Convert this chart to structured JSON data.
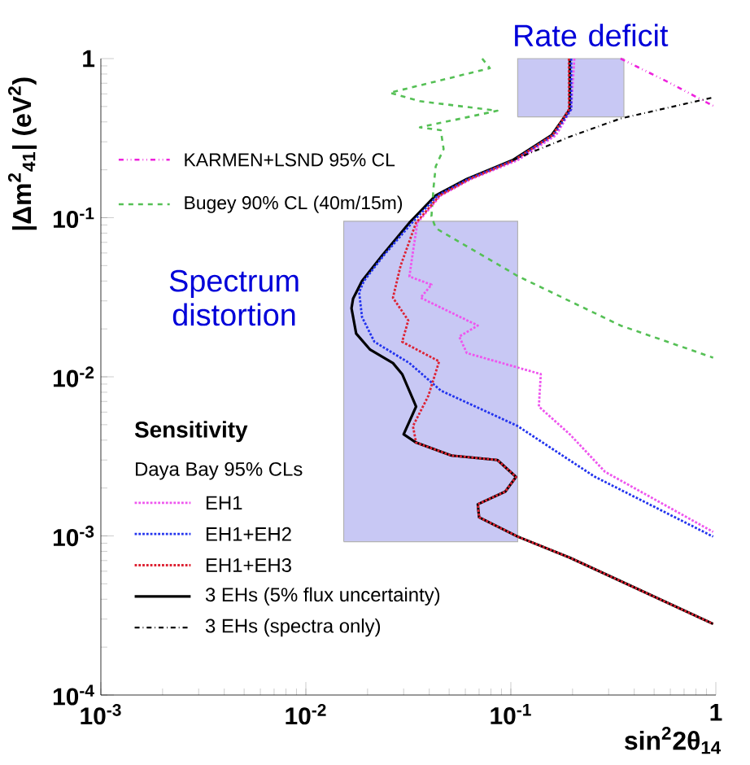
{
  "chart_data": {
    "type": "line",
    "xlabel": "sin$^{2}$2θ$_{14}$",
    "ylabel": "|Δm$^{2}$$_{41}$| (eV$^{2}$)",
    "log": "xy",
    "xlim": [
      0.001,
      1
    ],
    "ylim": [
      0.0001,
      1
    ],
    "xticks": [
      {
        "value": 0.001,
        "label": "10$^{-3}$"
      },
      {
        "value": 0.01,
        "label": "10$^{-2}$"
      },
      {
        "value": 0.1,
        "label": "10$^{-1}$"
      },
      1
    ],
    "yticks": [
      {
        "value": 0.0001,
        "label": "10$^{-4}$"
      },
      {
        "value": 0.001,
        "label": "10$^{-3}$"
      },
      {
        "value": 0.01,
        "label": "10$^{-2}$"
      },
      {
        "value": 0.1,
        "label": "10$^{-1}$"
      },
      1
    ],
    "legend": "left",
    "legend_title": "Sensitivity",
    "annotations": [
      "Daya Bay 95% CLs"
    ],
    "series": [
      {
        "name": "KARMEN+LSND 95% CL",
        "color": "#ee22dd",
        "line_style": "dashdotdotted",
        "x": [
          0.343,
          0.575,
          0.97
        ],
        "values": [
          1,
          0.72,
          0.505
        ]
      },
      {
        "name": "Bugey 90% CL (40m/15m)",
        "color": "#55c055",
        "line_style": "dashed",
        "x": [
          0.0725,
          0.079,
          0.0257,
          0.036,
          0.086,
          0.036,
          0.0455,
          0.047,
          0.043,
          0.042,
          0.041,
          0.043,
          0.108,
          0.343,
          0.97
        ],
        "values": [
          1,
          0.87,
          0.61,
          0.54,
          0.47,
          0.37,
          0.355,
          0.27,
          0.21,
          0.156,
          0.102,
          0.086,
          0.043,
          0.021,
          0.0132
        ]
      },
      {
        "name": "EH1",
        "color": "#ee55ee",
        "line_style": "dotted",
        "x": [
          0.204,
          0.197,
          0.166,
          0.108,
          0.064,
          0.0455,
          0.035,
          0.0333,
          0.032,
          0.041,
          0.0363,
          0.069,
          0.056,
          0.061,
          0.14,
          0.137,
          0.194,
          0.288,
          0.97
        ],
        "values": [
          1,
          0.48,
          0.33,
          0.23,
          0.175,
          0.138,
          0.093,
          0.061,
          0.0427,
          0.0379,
          0.0314,
          0.021,
          0.0179,
          0.0141,
          0.0104,
          0.0065,
          0.00435,
          0.00253,
          0.00106
        ]
      },
      {
        "name": "EH1+EH2",
        "color": "#2233ee",
        "line_style": "dotted",
        "x": [
          0.197,
          0.197,
          0.161,
          0.104,
          0.062,
          0.044,
          0.033,
          0.024,
          0.0192,
          0.0182,
          0.0188,
          0.0216,
          0.032,
          0.0455,
          0.108,
          0.256,
          0.97
        ],
        "values": [
          1,
          0.48,
          0.33,
          0.23,
          0.175,
          0.138,
          0.093,
          0.058,
          0.04,
          0.034,
          0.0237,
          0.0166,
          0.0122,
          0.0082,
          0.0049,
          0.00236,
          0.00099
        ]
      },
      {
        "name": "EH1+EH3",
        "color": "#dd2233",
        "line_style": "dotted",
        "x": [
          0.192,
          0.192,
          0.16,
          0.104,
          0.063,
          0.045,
          0.0345,
          0.029,
          0.0266,
          0.0316,
          0.0295,
          0.0447,
          0.0396,
          0.0333,
          0.0345,
          0.0513,
          0.086,
          0.106,
          0.094,
          0.069,
          0.07,
          0.108,
          0.194,
          0.343,
          0.97
        ],
        "values": [
          1,
          0.48,
          0.33,
          0.23,
          0.175,
          0.138,
          0.093,
          0.05,
          0.0314,
          0.0226,
          0.0166,
          0.0125,
          0.0076,
          0.0049,
          0.00386,
          0.0032,
          0.003,
          0.00235,
          0.0019,
          0.00158,
          0.00131,
          0.00099,
          0.00073,
          0.00052,
          0.00028
        ]
      },
      {
        "name": "3 EHs (5% flux uncertainty)",
        "color": "#000000",
        "line_style": "solid",
        "x": [
          0.194,
          0.194,
          0.158,
          0.102,
          0.061,
          0.043,
          0.032,
          0.0236,
          0.0188,
          0.017,
          0.0167,
          0.0176,
          0.0206,
          0.0266,
          0.0295,
          0.0345,
          0.03,
          0.0345,
          0.0513,
          0.086,
          0.106,
          0.094,
          0.069,
          0.07,
          0.108,
          0.194,
          0.343,
          0.97
        ],
        "values": [
          1,
          0.48,
          0.33,
          0.23,
          0.175,
          0.138,
          0.093,
          0.058,
          0.04,
          0.031,
          0.027,
          0.0187,
          0.0148,
          0.0122,
          0.0104,
          0.0065,
          0.00435,
          0.00386,
          0.0032,
          0.003,
          0.00235,
          0.0019,
          0.00158,
          0.00131,
          0.00099,
          0.00073,
          0.00052,
          0.00028
        ]
      },
      {
        "name": "3 EHs (spectra only)",
        "color": "#000000",
        "line_style": "dashdotted",
        "x": [
          0.102,
          0.194,
          0.343,
          0.97
        ],
        "values": [
          0.23,
          0.323,
          0.42,
          0.57
        ]
      },
      {
        "name": "Rate deficit",
        "type": "area",
        "color": "#c8c8f4",
        "x": [
          0.108,
          0.356,
          0.356,
          0.108,
          0.108
        ],
        "values": [
          0.43,
          0.43,
          1,
          1,
          0.43
        ]
      },
      {
        "name": "Spectrum distortion",
        "type": "area",
        "color": "#c8c8f4",
        "x": [
          0.0153,
          0.108,
          0.108,
          0.0153,
          0.0153
        ],
        "values": [
          0.00092,
          0.00092,
          0.095,
          0.095,
          0.00092
        ]
      }
    ]
  }
}
